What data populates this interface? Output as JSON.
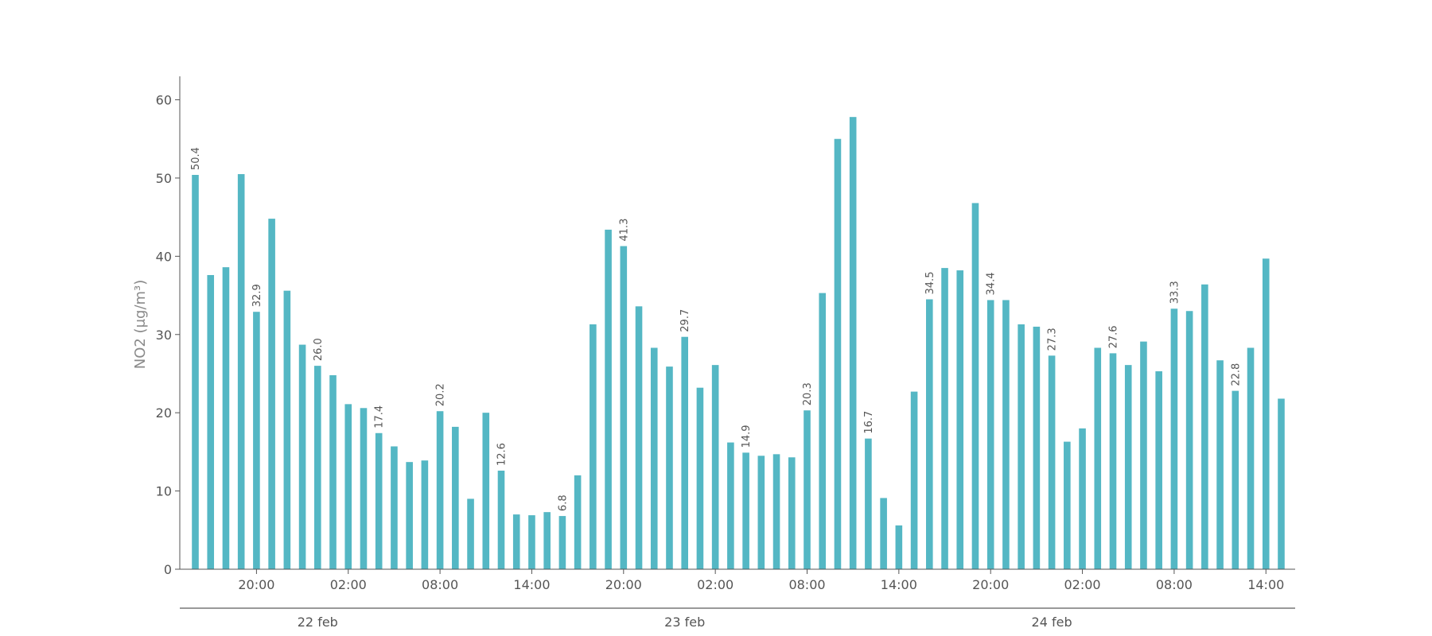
{
  "chart_data": {
    "type": "bar",
    "ylabel": "NO2 (μg/m³)",
    "ylim": [
      0,
      63
    ],
    "y_ticks": [
      0,
      10,
      20,
      30,
      40,
      50,
      60
    ],
    "bar_color": "#54b7c4",
    "axis_color": "#555555",
    "text_color": "#555555",
    "interval_hours": 2,
    "x_ticks": [
      {
        "index": 4,
        "label": "20:00"
      },
      {
        "index": 10,
        "label": "02:00"
      },
      {
        "index": 16,
        "label": "08:00"
      },
      {
        "index": 22,
        "label": "14:00"
      },
      {
        "index": 28,
        "label": "20:00"
      },
      {
        "index": 34,
        "label": "02:00"
      },
      {
        "index": 40,
        "label": "08:00"
      },
      {
        "index": 46,
        "label": "14:00"
      },
      {
        "index": 52,
        "label": "20:00"
      },
      {
        "index": 58,
        "label": "02:00"
      },
      {
        "index": 64,
        "label": "08:00"
      },
      {
        "index": 70,
        "label": "14:00"
      }
    ],
    "day_labels": [
      {
        "index": 8,
        "label": "22 feb"
      },
      {
        "index": 32,
        "label": "23 feb"
      },
      {
        "index": 56,
        "label": "24 feb"
      }
    ],
    "values": [
      50.4,
      37.6,
      38.6,
      50.5,
      32.9,
      44.8,
      35.6,
      28.7,
      26.0,
      24.8,
      21.1,
      20.6,
      17.4,
      15.7,
      13.7,
      13.9,
      20.2,
      18.2,
      9.0,
      20.0,
      12.6,
      7.0,
      6.9,
      7.3,
      6.8,
      12.0,
      31.3,
      43.4,
      41.3,
      33.6,
      28.3,
      25.9,
      29.7,
      23.2,
      26.1,
      16.2,
      14.9,
      14.5,
      14.7,
      14.3,
      20.3,
      35.3,
      55.0,
      57.8,
      16.7,
      9.1,
      5.6,
      22.7,
      34.5,
      38.5,
      38.2,
      46.8,
      34.4,
      34.4,
      31.3,
      31.0,
      27.3,
      16.3,
      18.0,
      28.3,
      27.6,
      26.1,
      29.1,
      25.3,
      33.3,
      33.0,
      36.4,
      26.7,
      22.8,
      28.3,
      39.7,
      21.8
    ],
    "labeled_indices": [
      0,
      4,
      8,
      12,
      16,
      20,
      24,
      28,
      32,
      36,
      40,
      44,
      48,
      52,
      56,
      60,
      64,
      68
    ]
  }
}
